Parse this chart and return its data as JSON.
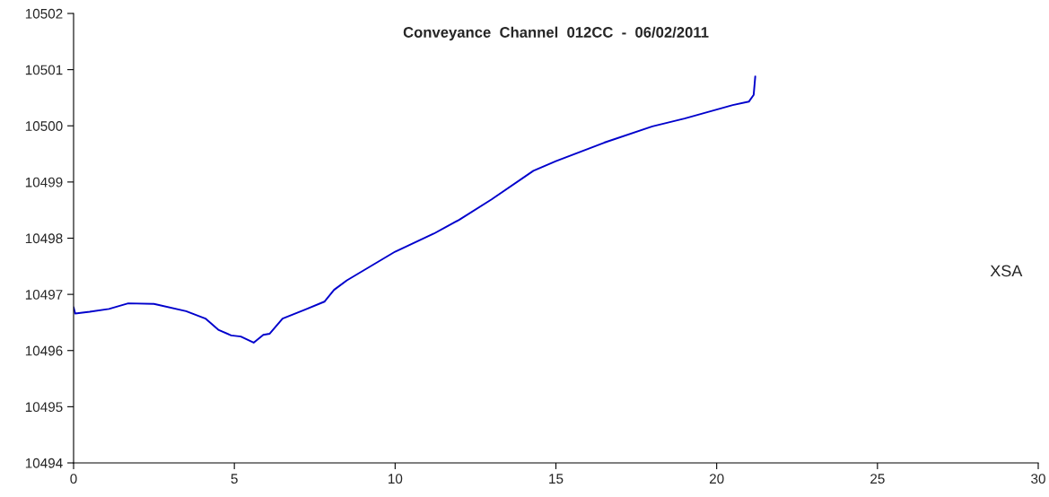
{
  "chart_data": {
    "type": "line",
    "title": "Conveyance  Channel  012CC  -  06/02/2011",
    "series": [
      {
        "color": "#0000cc",
        "x": [
          0,
          0.05,
          0.5,
          1.1,
          1.7,
          2.5,
          3.5,
          4.1,
          4.5,
          4.9,
          5.2,
          5.6,
          5.9,
          6.1,
          6.5,
          7.2,
          7.8,
          8.1,
          8.5,
          10,
          11.2,
          12,
          13,
          14.3,
          15,
          16.5,
          18,
          19,
          20.5,
          21.0,
          21.15,
          21.2
        ],
        "values": [
          10496.77,
          10496.66,
          10496.69,
          10496.74,
          10496.84,
          10496.83,
          10496.7,
          10496.57,
          10496.37,
          10496.27,
          10496.25,
          10496.14,
          10496.28,
          10496.3,
          10496.57,
          10496.73,
          10496.87,
          10497.08,
          10497.25,
          10497.76,
          10498.08,
          10498.33,
          10498.69,
          10499.2,
          10499.37,
          10499.7,
          10499.99,
          10500.13,
          10500.37,
          10500.43,
          10500.55,
          10500.88
        ]
      }
    ],
    "xlim": [
      0,
      30
    ],
    "xticks": [
      0,
      5,
      10,
      15,
      20,
      25,
      30
    ],
    "ylim": [
      10494,
      10502
    ],
    "yticks": [
      10494,
      10495,
      10496,
      10497,
      10498,
      10499,
      10500,
      10501,
      10502
    ],
    "annotations": [
      "XSA"
    ],
    "grid": false,
    "marker": "none",
    "line_style": "solid"
  }
}
